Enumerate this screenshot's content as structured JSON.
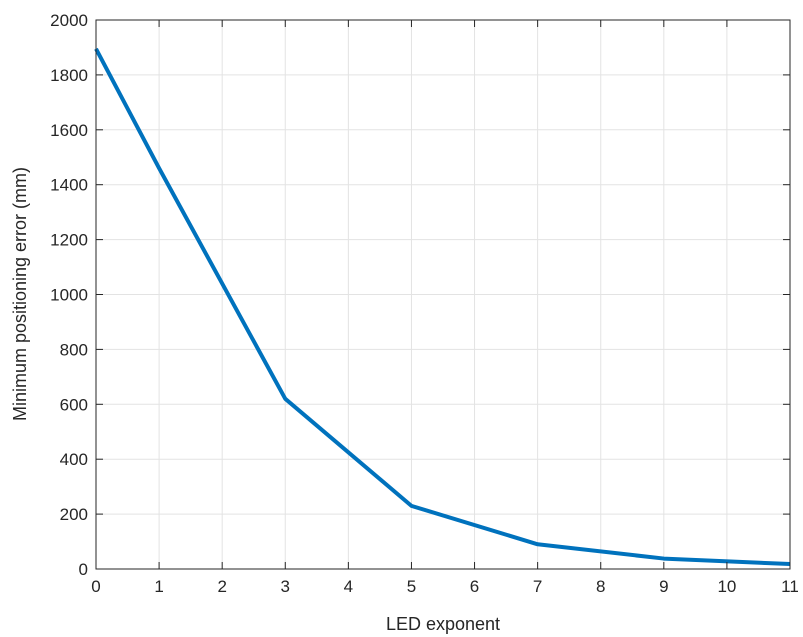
{
  "chart_data": {
    "type": "line",
    "title": "",
    "xlabel": "LED exponent",
    "ylabel": "Minimum positioning error (mm)",
    "xlim": [
      0,
      11
    ],
    "ylim": [
      0,
      2000
    ],
    "xticks": [
      0,
      1,
      2,
      3,
      4,
      5,
      6,
      7,
      8,
      9,
      10,
      11
    ],
    "yticks": [
      0,
      200,
      400,
      600,
      800,
      1000,
      1200,
      1400,
      1600,
      1800,
      2000
    ],
    "grid": true,
    "series": [
      {
        "color": "#0072BD",
        "x": [
          0,
          1,
          3,
          5,
          7,
          9,
          11
        ],
        "y": [
          1895,
          1460,
          620,
          230,
          90,
          38,
          18
        ]
      }
    ]
  }
}
